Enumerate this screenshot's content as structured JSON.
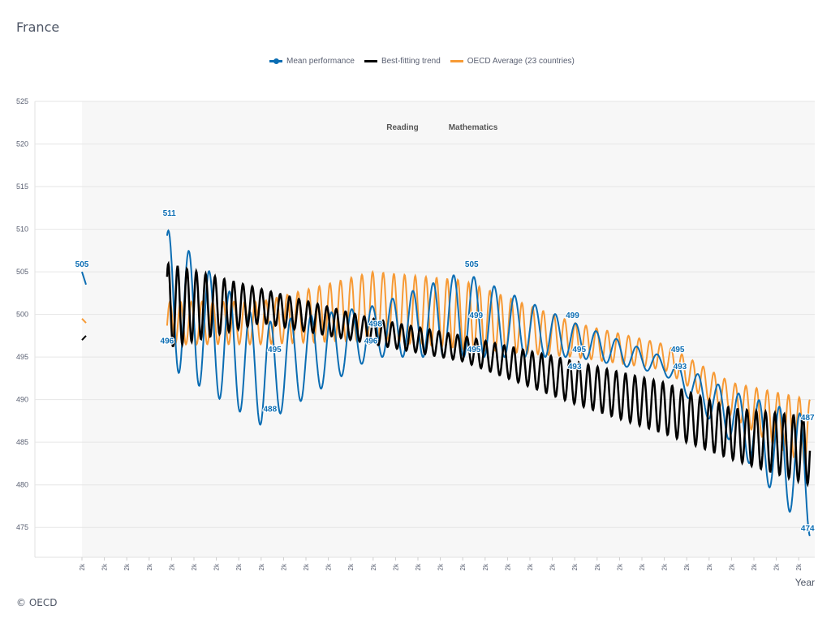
{
  "title": "France",
  "footer": "© OECD",
  "legend": [
    {
      "label": "Mean performance",
      "color": "#0b6db3",
      "icon": "line-with-dot"
    },
    {
      "label": "Best-fitting trend",
      "color": "#000000",
      "icon": "line"
    },
    {
      "label": "OECD Average (23 countries)",
      "color": "#f79a35",
      "icon": "line"
    }
  ],
  "chart_data": {
    "type": "line",
    "title": "",
    "xlabel": "Year",
    "ylabel": "",
    "ylim": [
      471.5,
      525
    ],
    "yticks": [
      475,
      480,
      485,
      490,
      495,
      500,
      505,
      510,
      515,
      520,
      525
    ],
    "xtick_label": "2k",
    "xtick_count": 33,
    "grid": true,
    "legend_position": "top",
    "section_labels": [
      "Reading",
      "Mathematics"
    ],
    "data_labels": [
      {
        "x": 0,
        "y": 505,
        "text": "505"
      },
      {
        "x": 3.9,
        "y": 511,
        "text": "511"
      },
      {
        "x": 3.8,
        "y": 496,
        "text": "496"
      },
      {
        "x": 8.4,
        "y": 488,
        "text": "488"
      },
      {
        "x": 8.6,
        "y": 495,
        "text": "495"
      },
      {
        "x": 13.1,
        "y": 498,
        "text": "498"
      },
      {
        "x": 12.9,
        "y": 496,
        "text": "496"
      },
      {
        "x": 17.4,
        "y": 505,
        "text": "505"
      },
      {
        "x": 17.6,
        "y": 499,
        "text": "499"
      },
      {
        "x": 17.5,
        "y": 495,
        "text": "495"
      },
      {
        "x": 21.9,
        "y": 499,
        "text": "499"
      },
      {
        "x": 22.2,
        "y": 495,
        "text": "495"
      },
      {
        "x": 22.0,
        "y": 493,
        "text": "493"
      },
      {
        "x": 26.6,
        "y": 495,
        "text": "495"
      },
      {
        "x": 26.7,
        "y": 493,
        "text": "493"
      },
      {
        "x": 32.4,
        "y": 487,
        "text": "487"
      },
      {
        "x": 32.4,
        "y": 474,
        "text": "474"
      }
    ]
  }
}
